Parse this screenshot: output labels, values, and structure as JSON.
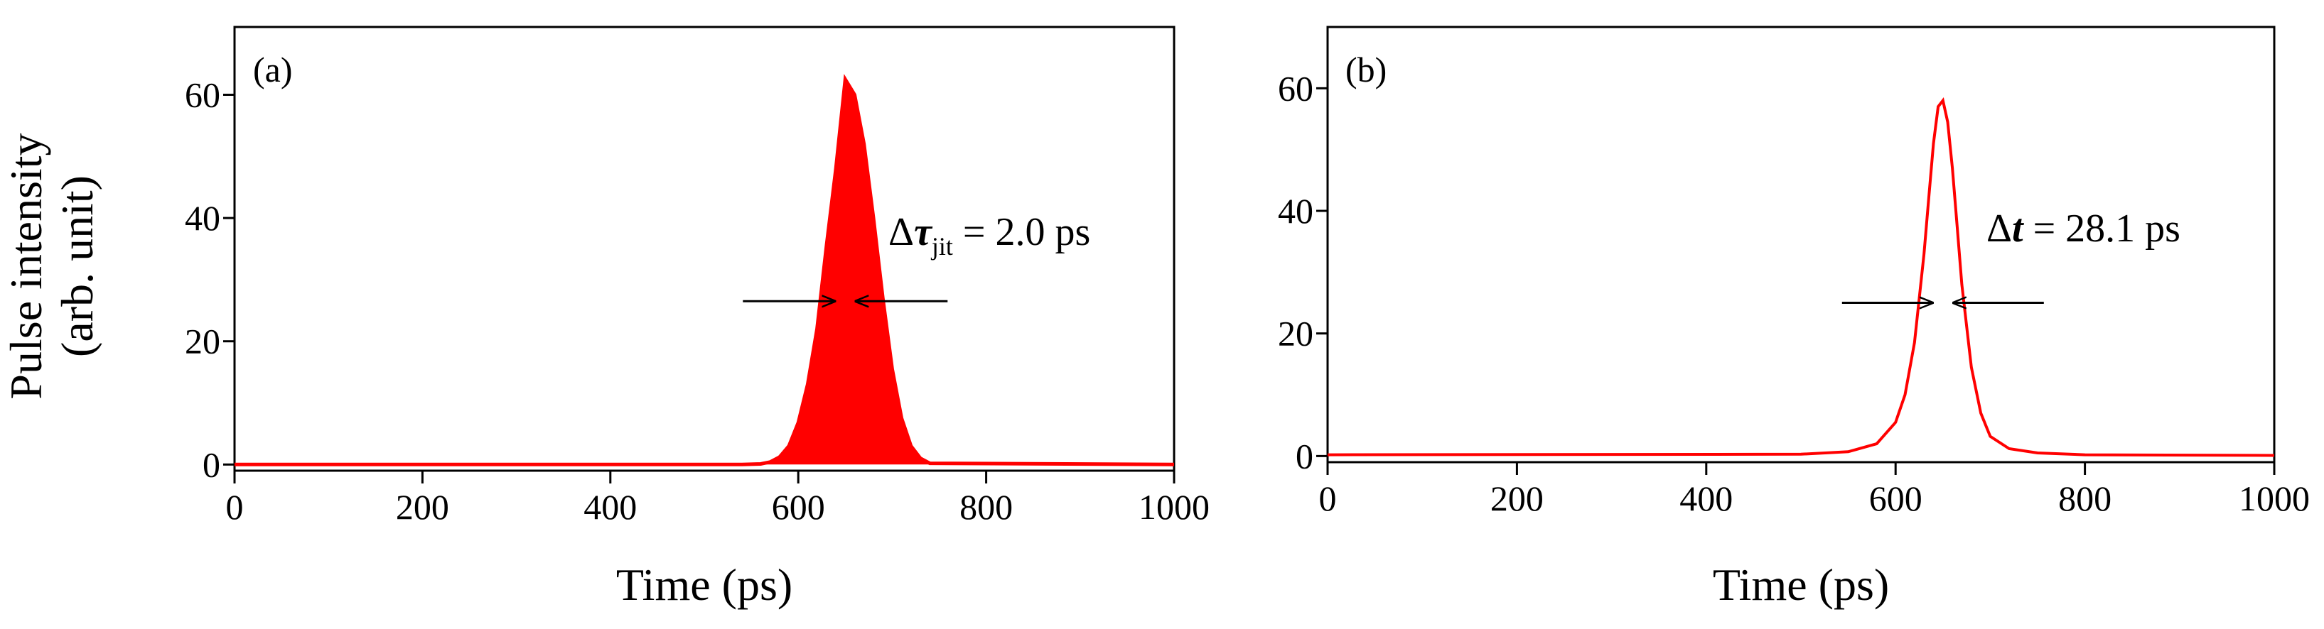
{
  "chart_data": [
    {
      "type": "line",
      "panel_label": "(a)",
      "xlabel": "Time (ps)",
      "ylabel": "Pulse intensity",
      "ylabel_unit": "(arb. unit)",
      "xlim": [
        0,
        1000
      ],
      "ylim": [
        -1,
        71
      ],
      "x_ticks": [
        0,
        200,
        400,
        600,
        800,
        1000
      ],
      "y_ticks": [
        0,
        20,
        40,
        60
      ],
      "peak_x": 650,
      "peak_y": 63,
      "jitter_band": true,
      "annotation": {
        "delta": "Δ",
        "symbol": "τ",
        "subscript": "jit",
        "value": " = 2.0 ps",
        "arrow_y": 26.5
      },
      "color": "#ff0000",
      "series": [
        {
          "x": [
            0,
            540,
            560,
            570,
            580,
            590,
            600,
            610,
            620,
            630,
            640,
            650,
            660,
            670,
            680,
            690,
            700,
            710,
            720,
            730,
            740,
            1000
          ],
          "y": [
            0,
            0,
            0.1,
            0.4,
            1.2,
            3.0,
            6.8,
            13.0,
            22.0,
            35.5,
            48.0,
            62.5,
            60.0,
            52.0,
            40.0,
            27.0,
            15.5,
            7.5,
            3.0,
            1.0,
            0.2,
            0
          ]
        }
      ]
    },
    {
      "type": "line",
      "panel_label": "(b)",
      "xlabel": "Time (ps)",
      "ylabel": "",
      "xlim": [
        0,
        1000
      ],
      "ylim": [
        -1,
        70
      ],
      "x_ticks": [
        0,
        200,
        400,
        600,
        800,
        1000
      ],
      "y_ticks": [
        0,
        20,
        40,
        60
      ],
      "annotation": {
        "delta": "Δ",
        "symbol": "t",
        "subscript": "",
        "value": " = 28.1 ps",
        "arrow_y": 25
      },
      "color": "#ff0000",
      "series": [
        {
          "x": [
            0,
            500,
            550,
            580,
            600,
            610,
            620,
            630,
            635,
            640,
            645,
            650,
            655,
            660,
            665,
            670,
            680,
            690,
            700,
            720,
            750,
            800,
            1000
          ],
          "y": [
            0.2,
            0.3,
            0.7,
            2.0,
            5.5,
            10.0,
            18.5,
            33.0,
            42.0,
            51.0,
            57.0,
            58.0,
            54.5,
            47.0,
            37.5,
            28.0,
            14.5,
            7.0,
            3.2,
            1.2,
            0.5,
            0.2,
            0.1
          ]
        }
      ]
    }
  ]
}
